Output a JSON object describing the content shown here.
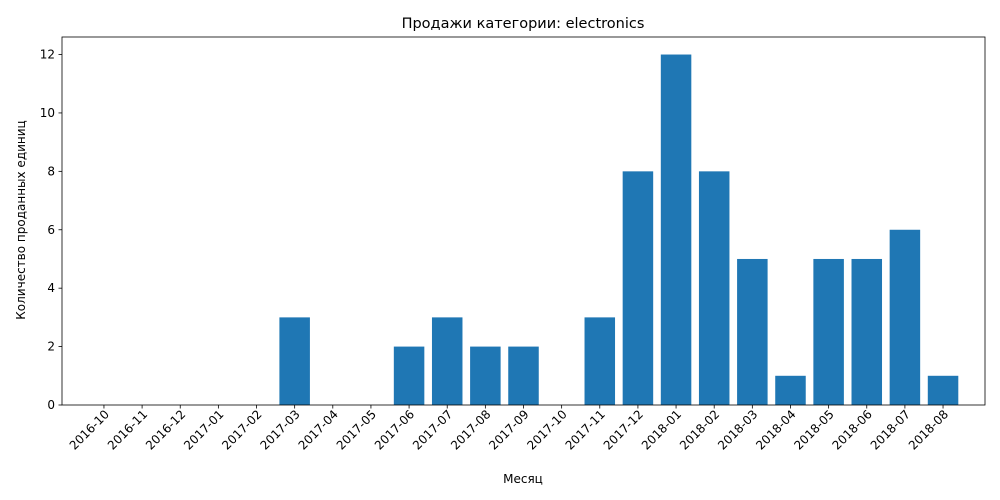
{
  "chart_data": {
    "type": "bar",
    "title": "Продажи категории: electronics",
    "xlabel": "Месяц",
    "ylabel": "Количество проданных единиц",
    "categories": [
      "2016-10",
      "2016-11",
      "2016-12",
      "2017-01",
      "2017-02",
      "2017-03",
      "2017-04",
      "2017-05",
      "2017-06",
      "2017-07",
      "2017-08",
      "2017-09",
      "2017-10",
      "2017-11",
      "2017-12",
      "2018-01",
      "2018-02",
      "2018-03",
      "2018-04",
      "2018-05",
      "2018-06",
      "2018-07",
      "2018-08"
    ],
    "values": [
      0,
      0,
      0,
      0,
      0,
      3,
      0,
      0,
      2,
      3,
      2,
      2,
      0,
      3,
      8,
      12,
      8,
      5,
      1,
      5,
      5,
      6,
      1
    ],
    "ylim": [
      0,
      12.6
    ],
    "yticks": [
      0,
      2,
      4,
      6,
      8,
      10,
      12
    ],
    "bar_color": "#1f77b4",
    "grid": false,
    "legend": "none"
  }
}
